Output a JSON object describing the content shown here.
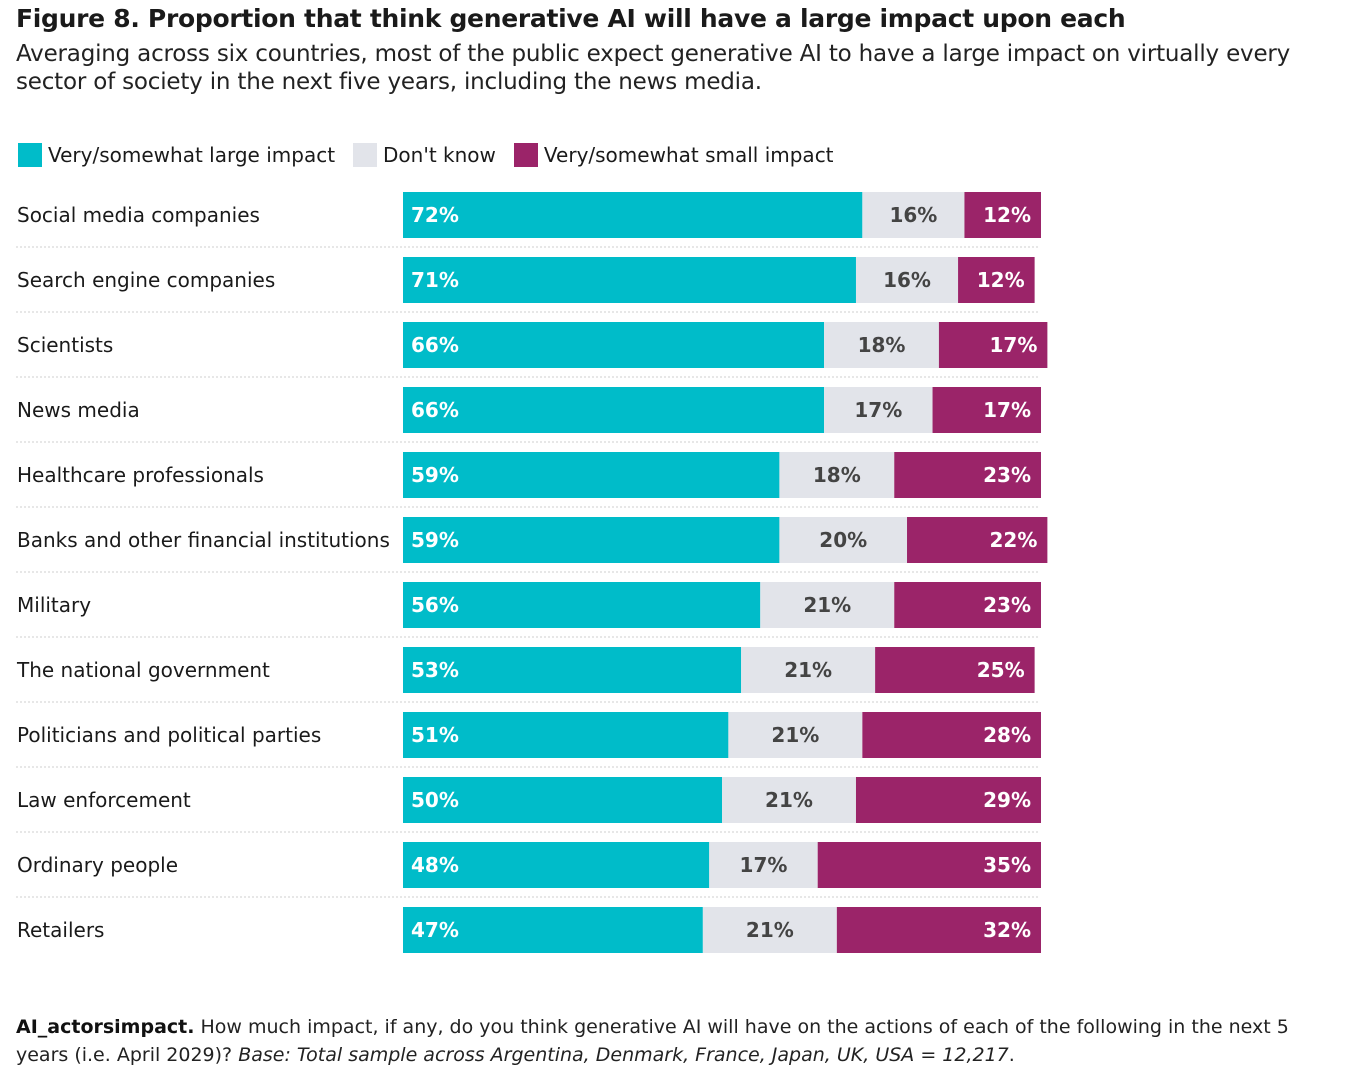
{
  "header": {
    "title": "Figure 8. Proportion that think generative AI will have a large impact upon each",
    "subtitle": "Averaging across six countries, most of the public expect generative AI to have a large impact on virtually every sector of society in the next five years, including the news media."
  },
  "legend": {
    "items": [
      {
        "label": "Very/somewhat large impact",
        "color": "#00bcc9"
      },
      {
        "label": "Don't know",
        "color": "#e2e4ea"
      },
      {
        "label": "Very/somewhat small impact",
        "color": "#9b2469"
      }
    ]
  },
  "chart_data": {
    "type": "bar",
    "orientation": "horizontal",
    "stacked": true,
    "categories": [
      "Social media companies",
      "Search engine companies",
      "Scientists",
      "News media",
      "Healthcare professionals",
      "Banks and other financial institutions",
      "Military",
      "The national government",
      "Politicians and political parties",
      "Law enforcement",
      "Ordinary people",
      "Retailers"
    ],
    "series": [
      {
        "name": "Very/somewhat large impact",
        "color": "#00bcc9",
        "label_color": "#ffffff",
        "label_align": "start",
        "values": [
          72,
          71,
          66,
          66,
          59,
          59,
          56,
          53,
          51,
          50,
          48,
          47
        ]
      },
      {
        "name": "Don't know",
        "color": "#e2e4ea",
        "label_color": "#444444",
        "label_align": "center",
        "values": [
          16,
          16,
          18,
          17,
          18,
          20,
          21,
          21,
          21,
          21,
          17,
          21
        ]
      },
      {
        "name": "Very/somewhat small impact",
        "color": "#9b2469",
        "label_color": "#ffffff",
        "label_align": "end",
        "values": [
          12,
          12,
          17,
          17,
          23,
          22,
          23,
          25,
          28,
          29,
          35,
          32
        ]
      }
    ],
    "value_suffix": "%",
    "xlim": [
      0,
      100
    ],
    "grid": false,
    "legend_position": "top-left"
  },
  "footnote": {
    "question_id": "AI_actorsimpact.",
    "question_text": " How much impact, if any, do you think generative AI will have on the actions of each of the following in the next 5 years (i.e. April 2029)? ",
    "base_text": "Base: Total sample across Argentina, Denmark, France, Japan, UK, USA = 12,217",
    "end": "."
  }
}
